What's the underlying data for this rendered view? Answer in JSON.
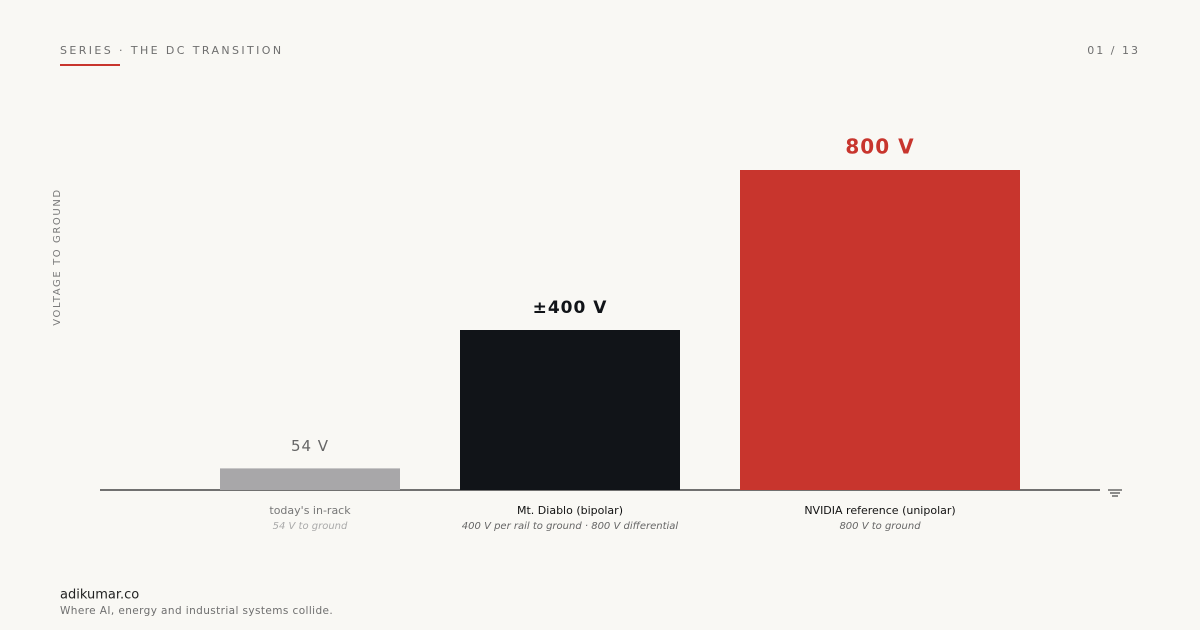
{
  "header": {
    "series": "SERIES · THE DC TRANSITION",
    "page": "01 / 13"
  },
  "chart_data": {
    "type": "bar",
    "y_label": "VOLTAGE TO GROUND",
    "categories": [
      "today's in-rack",
      "Mt. Diablo (bipolar)",
      "NVIDIA reference (unipolar)"
    ],
    "category_notes": [
      "54 V to ground",
      "400 V per rail to ground · 800 V differential",
      "800 V to ground"
    ],
    "values": [
      54,
      400,
      800
    ],
    "value_labels": [
      "54 V",
      "±400 V",
      "800 V"
    ],
    "colors": [
      "#a8a7a9",
      "#111418",
      "#c8352d"
    ],
    "ylim": [
      0,
      800
    ]
  },
  "footer": {
    "site": "adikumar.co",
    "tagline": "Where AI, energy and industrial systems collide."
  }
}
